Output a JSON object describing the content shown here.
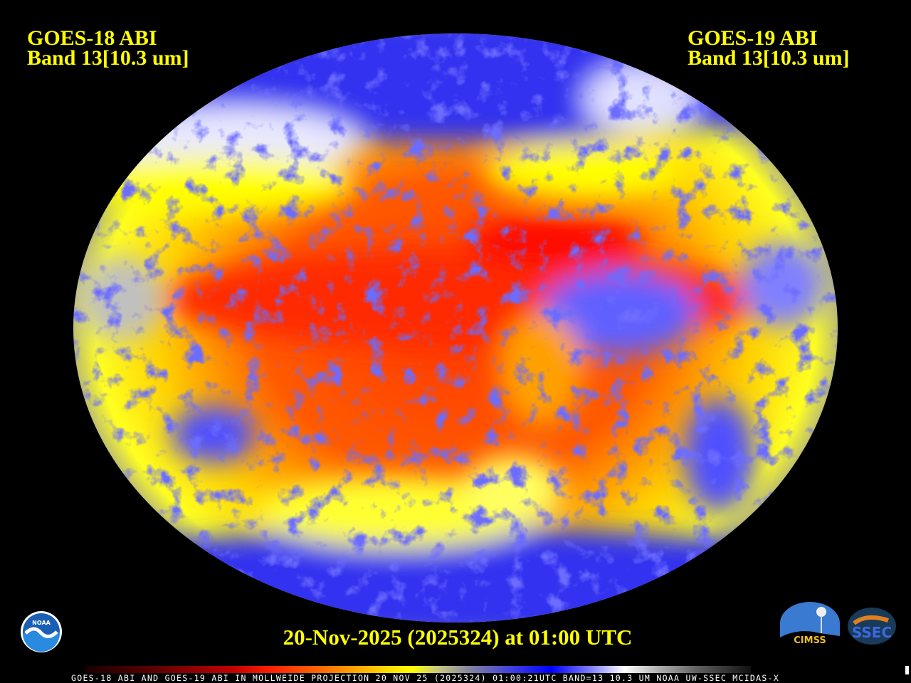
{
  "header": {
    "left_satellite": "GOES-18 ABI",
    "left_band": "Band 13[10.3 um]",
    "right_satellite": "GOES-19 ABI",
    "right_band": "Band 13[10.3 um]"
  },
  "timestamp": "20-Nov-2025 (2025324) at 01:00 UTC",
  "footer": "GOES-18 ABI AND GOES-19 ABI IN MOLLWEIDE PROJECTION 20 NOV 25 (2025324) 01:00:21UTC BAND=13 10.3 UM NOAA UW-SSEC MCIDAS-X",
  "logos": {
    "noaa": "NOAA",
    "cimss": "CIMSS",
    "ssec": "SSEC"
  },
  "projection": "Mollweide",
  "colors": {
    "title_text": "#ffff00",
    "background": "#000000",
    "warm": "#ff3000",
    "cold_cloud": "#2020ff",
    "very_cold": "#ffffff"
  }
}
